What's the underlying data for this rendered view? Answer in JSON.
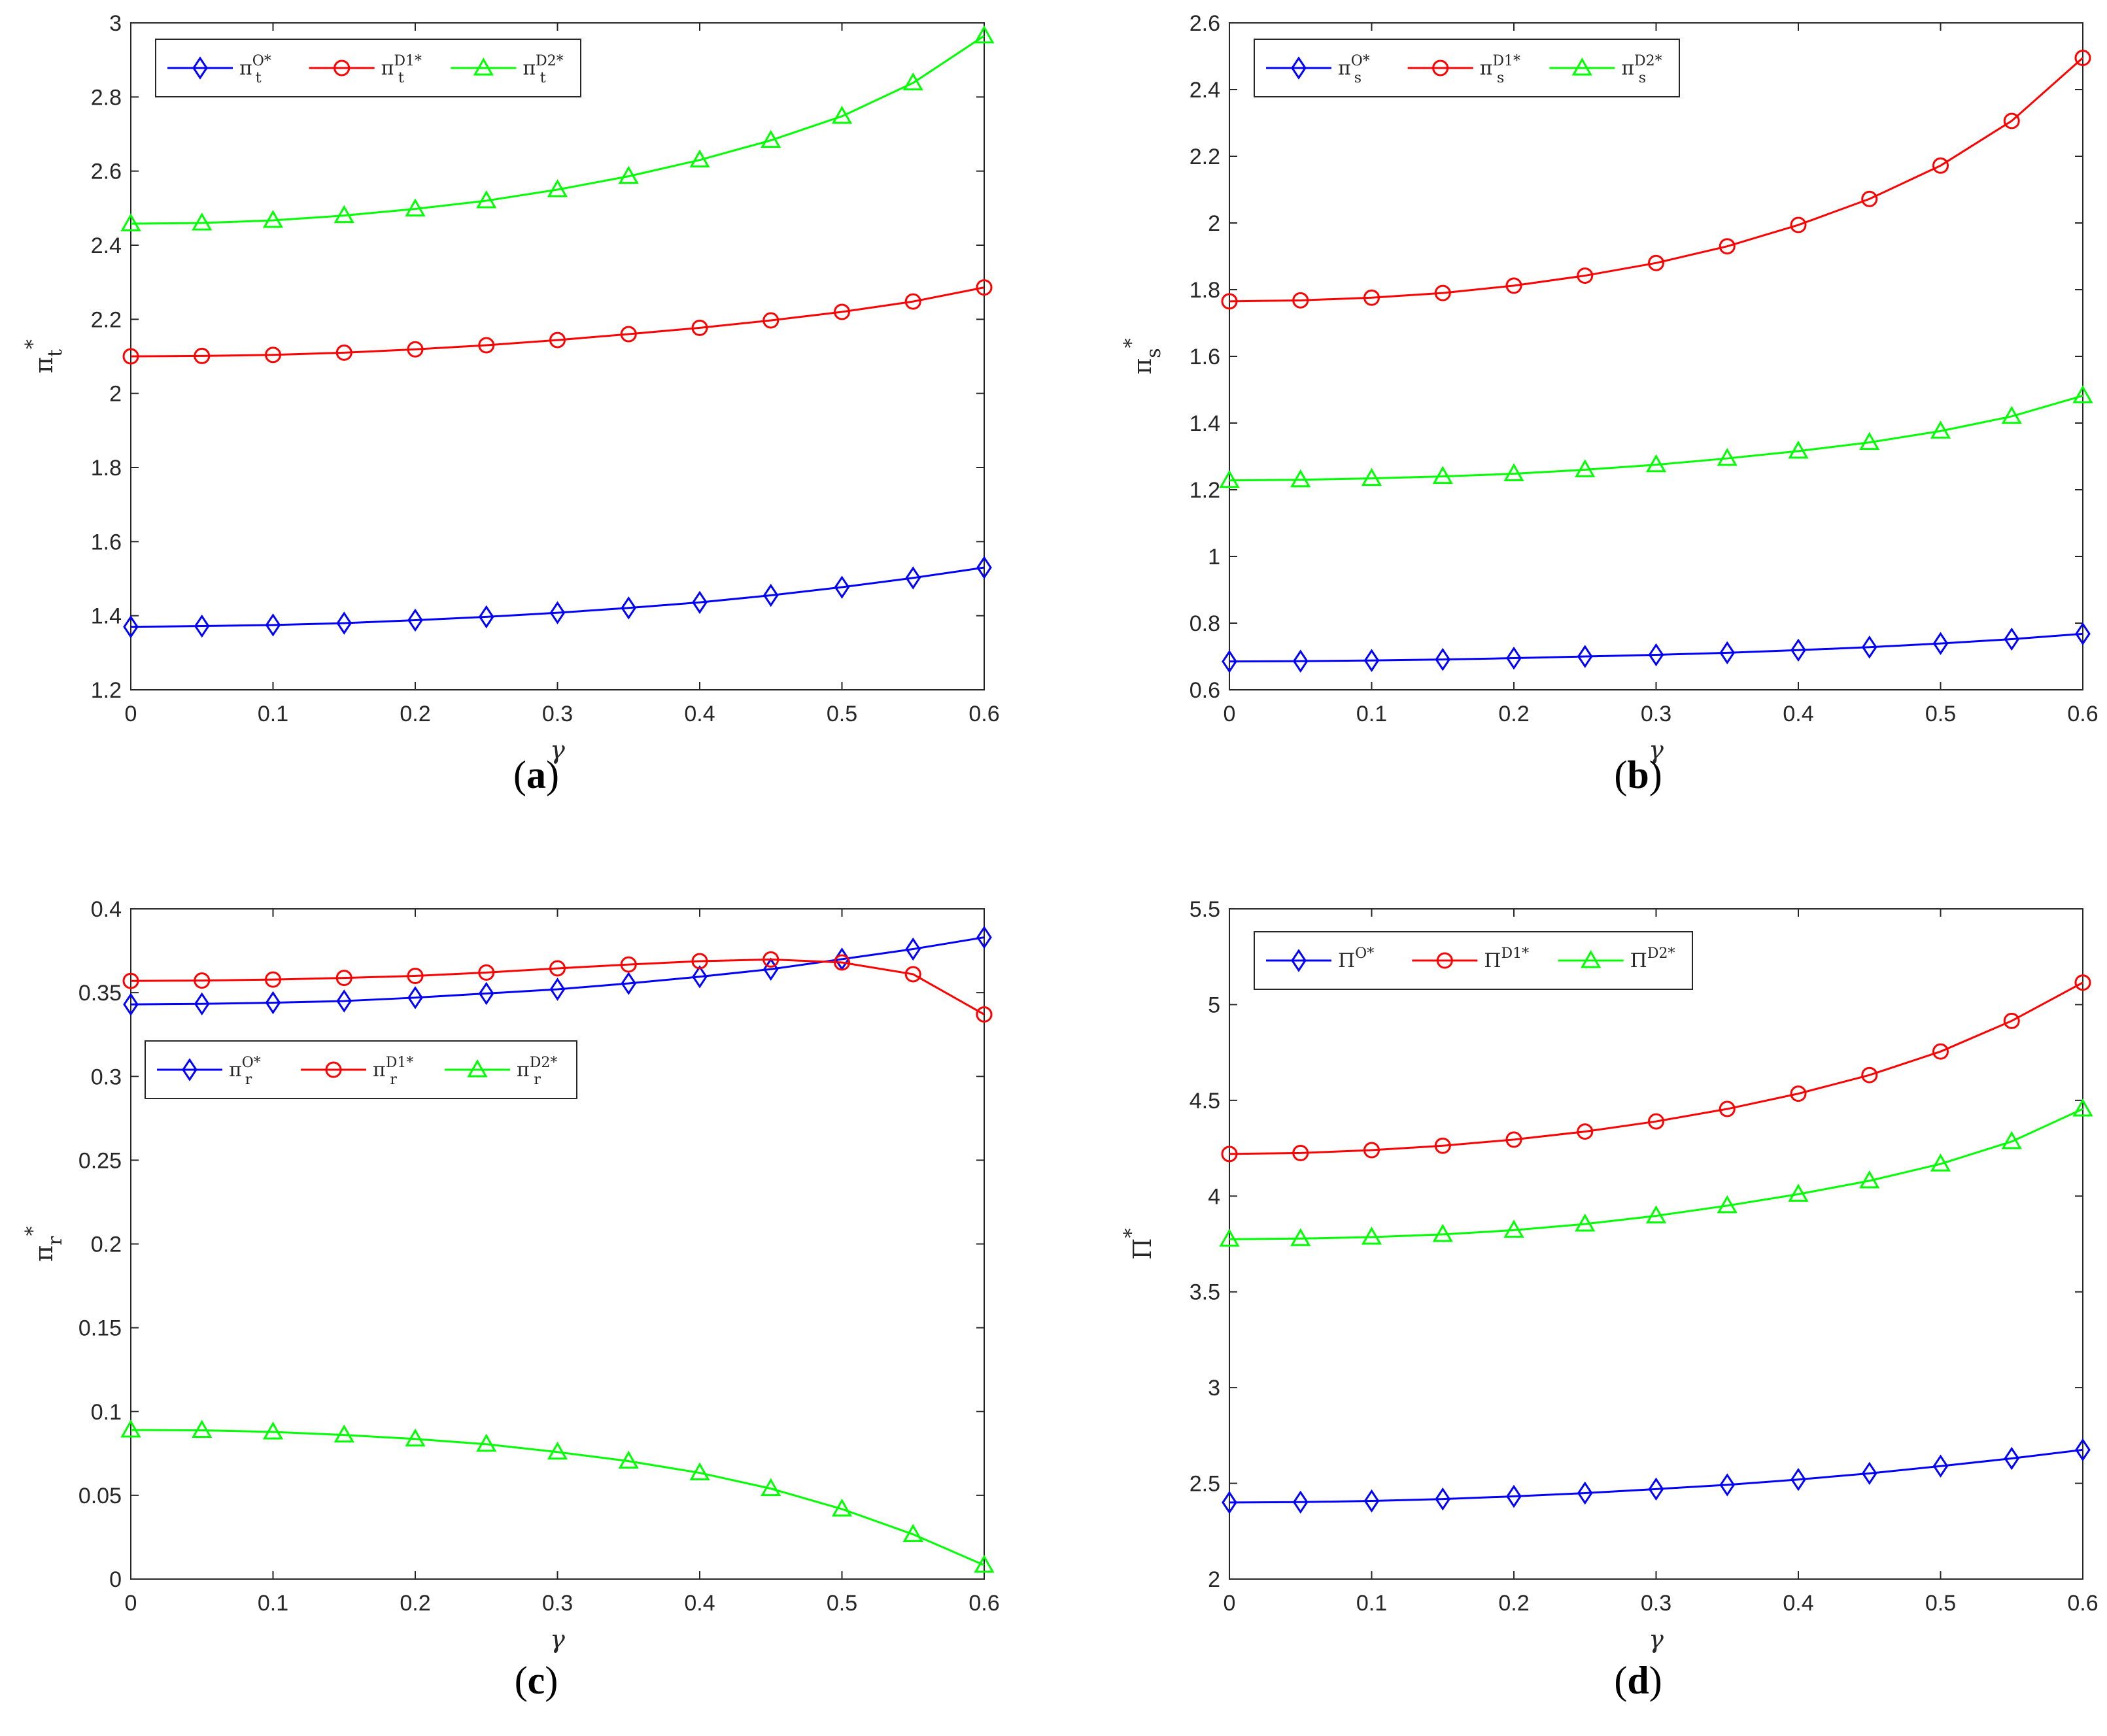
{
  "figure": {
    "panel_letters": [
      "a",
      "b",
      "c",
      "d"
    ]
  },
  "colors": {
    "O": "#0000ff",
    "D1": "#ff0000",
    "D2": "#00ff00",
    "axis": "#262626"
  },
  "chart_data": [
    {
      "type": "line",
      "caption": "(a)",
      "xlabel": "γ",
      "ylabel": {
        "base": "π",
        "sub": "t",
        "sup": "*"
      },
      "xlim": [
        0,
        0.6
      ],
      "ylim": [
        1.2,
        3
      ],
      "xticks": [
        0,
        0.1,
        0.2,
        0.3,
        0.4,
        0.5,
        0.6
      ],
      "xtick_labels": [
        "0",
        "0.1",
        "0.2",
        "0.3",
        "0.4",
        "0.5",
        "0.6"
      ],
      "yticks": [
        1.2,
        1.4,
        1.6,
        1.8,
        2,
        2.2,
        2.4,
        2.6,
        2.8,
        3
      ],
      "ytick_labels": [
        "1.2",
        "1.4",
        "1.6",
        "1.8",
        "2",
        "2.2",
        "2.4",
        "2.6",
        "2.8",
        "3"
      ],
      "legend": "top-left",
      "x": [
        0,
        0.05,
        0.1,
        0.15,
        0.2,
        0.25,
        0.3,
        0.35,
        0.4,
        0.45,
        0.5,
        0.55,
        0.6
      ],
      "series": [
        {
          "key": "O",
          "marker": "diamond",
          "label": {
            "base": "π",
            "sub": "t",
            "sup": "O*"
          },
          "values": [
            1.37,
            1.372,
            1.375,
            1.38,
            1.388,
            1.397,
            1.408,
            1.421,
            1.436,
            1.455,
            1.477,
            1.502,
            1.53
          ]
        },
        {
          "key": "D1",
          "marker": "circle",
          "label": {
            "base": "π",
            "sub": "t",
            "sup": "D1*"
          },
          "values": [
            2.1,
            2.101,
            2.104,
            2.11,
            2.119,
            2.13,
            2.144,
            2.16,
            2.177,
            2.197,
            2.22,
            2.248,
            2.286
          ]
        },
        {
          "key": "D2",
          "marker": "triangle",
          "label": {
            "base": "π",
            "sub": "t",
            "sup": "D2*"
          },
          "values": [
            2.458,
            2.46,
            2.467,
            2.48,
            2.498,
            2.52,
            2.55,
            2.586,
            2.63,
            2.683,
            2.748,
            2.838,
            2.965
          ]
        }
      ]
    },
    {
      "type": "line",
      "caption": "(b)",
      "xlabel": "γ",
      "ylabel": {
        "base": "π",
        "sub": "s",
        "sup": "*"
      },
      "xlim": [
        0,
        0.6
      ],
      "ylim": [
        0.6,
        2.6
      ],
      "xticks": [
        0,
        0.1,
        0.2,
        0.3,
        0.4,
        0.5,
        0.6
      ],
      "xtick_labels": [
        "0",
        "0.1",
        "0.2",
        "0.3",
        "0.4",
        "0.5",
        "0.6"
      ],
      "yticks": [
        0.6,
        0.8,
        1,
        1.2,
        1.4,
        1.6,
        1.8,
        2,
        2.2,
        2.4,
        2.6
      ],
      "ytick_labels": [
        "0.6",
        "0.8",
        "1",
        "1.2",
        "1.4",
        "1.6",
        "1.8",
        "2",
        "2.2",
        "2.4",
        "2.6"
      ],
      "legend": "top-left",
      "x": [
        0,
        0.05,
        0.1,
        0.15,
        0.2,
        0.25,
        0.3,
        0.35,
        0.4,
        0.45,
        0.5,
        0.55,
        0.6
      ],
      "series": [
        {
          "key": "O",
          "marker": "diamond",
          "label": {
            "base": "π",
            "sub": "s",
            "sup": "O*"
          },
          "values": [
            0.685,
            0.686,
            0.688,
            0.691,
            0.695,
            0.7,
            0.705,
            0.711,
            0.719,
            0.728,
            0.739,
            0.752,
            0.768
          ]
        },
        {
          "key": "D1",
          "marker": "circle",
          "label": {
            "base": "π",
            "sub": "s",
            "sup": "D1*"
          },
          "values": [
            1.765,
            1.768,
            1.776,
            1.79,
            1.812,
            1.842,
            1.88,
            1.93,
            1.994,
            2.072,
            2.172,
            2.306,
            2.495
          ]
        },
        {
          "key": "D2",
          "marker": "triangle",
          "label": {
            "base": "π",
            "sub": "s",
            "sup": "D2*"
          },
          "values": [
            1.228,
            1.23,
            1.234,
            1.24,
            1.248,
            1.26,
            1.275,
            1.294,
            1.316,
            1.342,
            1.376,
            1.42,
            1.482
          ]
        }
      ]
    },
    {
      "type": "line",
      "caption": "(c)",
      "xlabel": "γ",
      "ylabel": {
        "base": "π",
        "sub": "r",
        "sup": "*"
      },
      "xlim": [
        0,
        0.6
      ],
      "ylim": [
        0,
        0.4
      ],
      "xticks": [
        0,
        0.1,
        0.2,
        0.3,
        0.4,
        0.5,
        0.6
      ],
      "xtick_labels": [
        "0",
        "0.1",
        "0.2",
        "0.3",
        "0.4",
        "0.5",
        "0.6"
      ],
      "yticks": [
        0,
        0.05,
        0.1,
        0.15,
        0.2,
        0.25,
        0.3,
        0.35,
        0.4
      ],
      "ytick_labels": [
        "0",
        "0.05",
        "0.1",
        "0.15",
        "0.2",
        "0.25",
        "0.3",
        "0.35",
        "0.4"
      ],
      "legend": "upper-left, below the curves",
      "x": [
        0,
        0.05,
        0.1,
        0.15,
        0.2,
        0.25,
        0.3,
        0.35,
        0.4,
        0.45,
        0.5,
        0.55,
        0.6
      ],
      "series": [
        {
          "key": "O",
          "marker": "diamond",
          "label": {
            "base": "π",
            "sub": "r",
            "sup": "O*"
          },
          "values": [
            0.343,
            0.3433,
            0.344,
            0.345,
            0.347,
            0.3495,
            0.352,
            0.3555,
            0.3595,
            0.364,
            0.37,
            0.376,
            0.383
          ]
        },
        {
          "key": "D1",
          "marker": "circle",
          "label": {
            "base": "π",
            "sub": "r",
            "sup": "D1*"
          },
          "values": [
            0.357,
            0.3572,
            0.3578,
            0.3588,
            0.36,
            0.362,
            0.3645,
            0.3668,
            0.3688,
            0.3698,
            0.368,
            0.361,
            0.337
          ]
        },
        {
          "key": "D2",
          "marker": "triangle",
          "label": {
            "base": "π",
            "sub": "r",
            "sup": "D2*"
          },
          "values": [
            0.089,
            0.0888,
            0.0878,
            0.086,
            0.0836,
            0.0805,
            0.0758,
            0.0704,
            0.0634,
            0.054,
            0.0418,
            0.0267,
            0.0083
          ]
        }
      ]
    },
    {
      "type": "line",
      "caption": "(d)",
      "xlabel": "γ",
      "ylabel": {
        "base": "Π",
        "sub": "",
        "sup": "*"
      },
      "xlim": [
        0,
        0.6
      ],
      "ylim": [
        2,
        5.5
      ],
      "xticks": [
        0,
        0.1,
        0.2,
        0.3,
        0.4,
        0.5,
        0.6
      ],
      "xtick_labels": [
        "0",
        "0.1",
        "0.2",
        "0.3",
        "0.4",
        "0.5",
        "0.6"
      ],
      "yticks": [
        2,
        2.5,
        3,
        3.5,
        4,
        4.5,
        5,
        5.5
      ],
      "ytick_labels": [
        "2",
        "2.5",
        "3",
        "3.5",
        "4",
        "4.5",
        "5",
        "5.5"
      ],
      "legend": "top-left",
      "x": [
        0,
        0.05,
        0.1,
        0.15,
        0.2,
        0.25,
        0.3,
        0.35,
        0.4,
        0.45,
        0.5,
        0.55,
        0.6
      ],
      "series": [
        {
          "key": "O",
          "marker": "diamond",
          "label": {
            "base": "Π",
            "sub": "",
            "sup": "O*"
          },
          "values": [
            2.4,
            2.402,
            2.408,
            2.418,
            2.432,
            2.449,
            2.47,
            2.492,
            2.52,
            2.552,
            2.59,
            2.63,
            2.675
          ]
        },
        {
          "key": "D1",
          "marker": "circle",
          "label": {
            "base": "Π",
            "sub": "",
            "sup": "D1*"
          },
          "values": [
            4.22,
            4.225,
            4.24,
            4.263,
            4.295,
            4.337,
            4.39,
            4.455,
            4.535,
            4.632,
            4.755,
            4.915,
            5.115
          ]
        },
        {
          "key": "D2",
          "marker": "triangle",
          "label": {
            "base": "Π",
            "sub": "",
            "sup": "D2*"
          },
          "values": [
            3.775,
            3.778,
            3.786,
            3.8,
            3.822,
            3.854,
            3.897,
            3.95,
            4.01,
            4.08,
            4.168,
            4.285,
            4.455
          ]
        }
      ]
    }
  ]
}
